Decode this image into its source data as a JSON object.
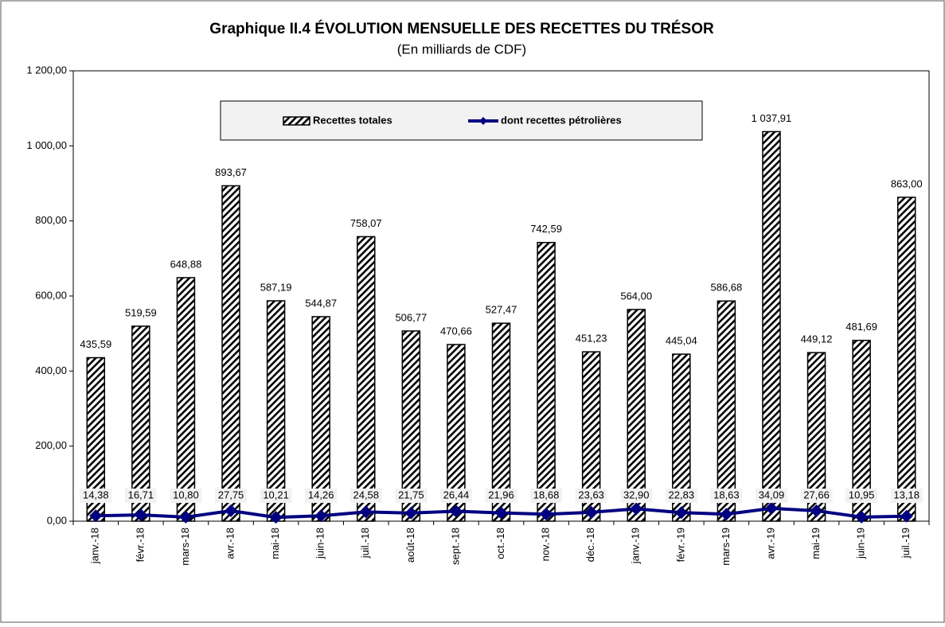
{
  "chart_data": {
    "type": "bar_line",
    "title": "Graphique II.4  ÉVOLUTION MENSUELLE DES RECETTES DU TRÉSOR",
    "subtitle": "(En milliards de CDF)",
    "categories": [
      "janv.-18",
      "févr.-18",
      "mars-18",
      "avr.-18",
      "mai-18",
      "juin-18",
      "juil.-18",
      "août-18",
      "sept.-18",
      "oct.-18",
      "nov.-18",
      "déc.-18",
      "janv.-19",
      "févr.-19",
      "mars-19",
      "avr.-19",
      "mai-19",
      "juin-19",
      "juil.-19"
    ],
    "series": [
      {
        "name": "Recettes totales",
        "type": "bar",
        "color": "#000000",
        "values": [
          435.59,
          519.59,
          648.88,
          893.67,
          587.19,
          544.87,
          758.07,
          506.77,
          470.66,
          527.47,
          742.59,
          451.23,
          564.0,
          445.04,
          586.68,
          1037.91,
          449.12,
          481.69,
          863.0
        ],
        "value_labels": [
          "435,59",
          "519,59",
          "648,88",
          "893,67",
          "587,19",
          "544,87",
          "758,07",
          "506,77",
          "470,66",
          "527,47",
          "742,59",
          "451,23",
          "564,00",
          "445,04",
          "586,68",
          "1 037,91",
          "449,12",
          "481,69",
          "863,00"
        ]
      },
      {
        "name": "dont recettes pétrolières",
        "type": "line",
        "color": "#000080",
        "values": [
          14.38,
          16.71,
          10.8,
          27.75,
          10.21,
          14.26,
          24.58,
          21.75,
          26.44,
          21.96,
          18.68,
          23.63,
          32.9,
          22.83,
          18.63,
          34.09,
          27.66,
          10.95,
          13.18
        ],
        "value_labels": [
          "14,38",
          "16,71",
          "10,80",
          "27,75",
          "10,21",
          "14,26",
          "24,58",
          "21,75",
          "26,44",
          "21,96",
          "18,68",
          "23,63",
          "32,90",
          "22,83",
          "18,63",
          "34,09",
          "27,66",
          "10,95",
          "13,18"
        ]
      }
    ],
    "ylim": [
      0,
      1200
    ],
    "yticks": [
      {
        "value": 0,
        "label": "0,00"
      },
      {
        "value": 200,
        "label": "200,00"
      },
      {
        "value": 400,
        "label": "400,00"
      },
      {
        "value": 600,
        "label": "600,00"
      },
      {
        "value": 800,
        "label": "800,00"
      },
      {
        "value": 1000,
        "label": "1 000,00"
      },
      {
        "value": 1200,
        "label": "1 200,00"
      }
    ],
    "grid": false,
    "legend": "top"
  }
}
